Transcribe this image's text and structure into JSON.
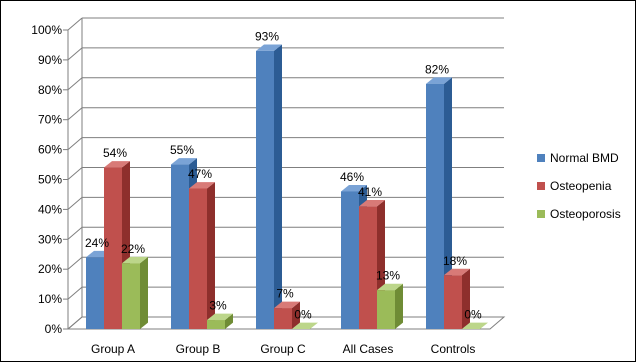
{
  "chart_data": {
    "type": "bar",
    "title": "",
    "xlabel": "",
    "ylabel": "",
    "ylim": [
      0,
      100
    ],
    "y_ticks": [
      "0%",
      "10%",
      "20%",
      "30%",
      "40%",
      "50%",
      "60%",
      "70%",
      "80%",
      "90%",
      "100%"
    ],
    "grid": true,
    "three_d": true,
    "legend_position": "right",
    "categories": [
      "Group A",
      "Group B",
      "Group C",
      "All Cases",
      "Controls"
    ],
    "series": [
      {
        "name": "Normal BMD",
        "values": [
          24,
          55,
          93,
          46,
          82
        ],
        "labels": [
          "24%",
          "55%",
          "93%",
          "46%",
          "82%"
        ],
        "color": "#4f81bd",
        "side_color": "#2c5c94",
        "top_color": "#7aa3d6"
      },
      {
        "name": "Osteopenia",
        "values": [
          54,
          47,
          7,
          41,
          18
        ],
        "labels": [
          "54%",
          "47%",
          "7%",
          "41%",
          "18%"
        ],
        "color": "#c0504d",
        "side_color": "#8e2f2c",
        "top_color": "#d87a77"
      },
      {
        "name": "Osteoporosis",
        "values": [
          22,
          3,
          0,
          13,
          0
        ],
        "labels": [
          "22%",
          "3%",
          "0%",
          "13%",
          "0%"
        ],
        "color": "#9bbb59",
        "side_color": "#6f8c35",
        "top_color": "#bcd68a"
      }
    ],
    "gridline_color": "#7f7f7f",
    "wall_color": "#ffffff"
  }
}
